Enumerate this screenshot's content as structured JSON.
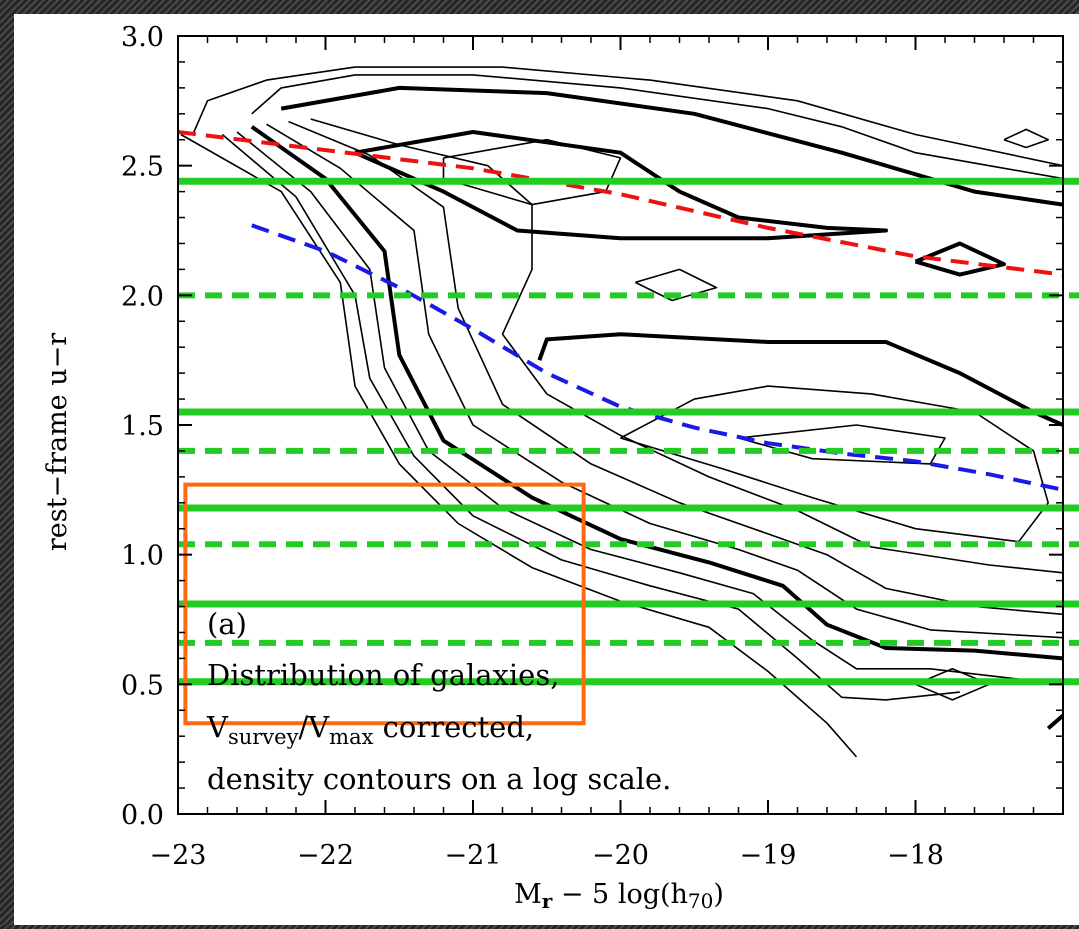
{
  "chart_data": {
    "type": "contour",
    "xlabel": {
      "main": "M",
      "sub": "r",
      "rest": "  −  5 log(h",
      "paren_sub": "70",
      "close": ")"
    },
    "ylabel": "rest−frame u−r",
    "xlim": [
      -23,
      -17.0
    ],
    "ylim": [
      0,
      3.0
    ],
    "x_ticks": [
      -23,
      -22,
      -21,
      -20,
      -19,
      -18
    ],
    "x_tick_labels": [
      "−23",
      "−22",
      "−21",
      "−20",
      "−19",
      "−18"
    ],
    "y_ticks": [
      0,
      0.5,
      1.0,
      1.5,
      2.0,
      2.5,
      3.0
    ],
    "y_tick_labels": [
      "0.0",
      "0.5",
      "1.0",
      "1.5",
      "2.0",
      "2.5",
      "3.0"
    ],
    "annotation": {
      "label": "(a)",
      "line1": "Distribution of galaxies,",
      "line2_pre": "V",
      "line2_sub1": "survey",
      "line2_mid": "/V",
      "line2_sub2": "max",
      "line2_post": " corrected,",
      "line3": "density contours on a log scale."
    },
    "reference_lines": {
      "solid_green_y": [
        2.44,
        1.55,
        1.18,
        0.81,
        0.51
      ],
      "dashed_green_y": [
        2.0,
        1.4,
        1.04,
        0.66
      ],
      "color": "#22cc22"
    },
    "dashed_fits": [
      {
        "color": "#ee1111",
        "x": [
          -23.0,
          -22.0,
          -21.0,
          -20.0,
          -19.0,
          -18.0,
          -17.0
        ],
        "y": [
          2.63,
          2.56,
          2.49,
          2.39,
          2.26,
          2.15,
          2.08
        ]
      },
      {
        "color": "#1a1ae6",
        "x": [
          -22.5,
          -22.0,
          -21.5,
          -21.0,
          -20.5,
          -20.0,
          -19.5,
          -19.0,
          -18.5,
          -18.0,
          -17.5,
          -17.0
        ],
        "y": [
          2.27,
          2.17,
          2.03,
          1.87,
          1.7,
          1.57,
          1.49,
          1.43,
          1.39,
          1.36,
          1.31,
          1.25
        ]
      }
    ],
    "highlight_box": {
      "x": [
        -22.95,
        -20.25
      ],
      "y": [
        0.35,
        1.27
      ],
      "color": "#ff6a10"
    },
    "contours": [
      {
        "weight": "thin",
        "points": [
          [
            -22.5,
            2.7
          ],
          [
            -22.3,
            2.8
          ],
          [
            -21.8,
            2.85
          ],
          [
            -21.0,
            2.85
          ],
          [
            -20.0,
            2.8
          ],
          [
            -19.0,
            2.72
          ],
          [
            -18.5,
            2.65
          ],
          [
            -18.0,
            2.55
          ],
          [
            -17.5,
            2.5
          ],
          [
            -17.0,
            2.45
          ]
        ]
      },
      {
        "weight": "thin",
        "points": [
          [
            -22.9,
            2.62
          ],
          [
            -22.8,
            2.75
          ],
          [
            -22.4,
            2.83
          ],
          [
            -21.8,
            2.88
          ],
          [
            -20.8,
            2.88
          ],
          [
            -19.8,
            2.83
          ],
          [
            -18.8,
            2.75
          ],
          [
            -18.0,
            2.62
          ],
          [
            -17.0,
            2.5
          ]
        ]
      },
      {
        "weight": "thin",
        "points": [
          [
            -22.98,
            2.62
          ],
          [
            -22.3,
            2.4
          ],
          [
            -21.9,
            2.05
          ],
          [
            -21.8,
            1.65
          ],
          [
            -21.5,
            1.35
          ],
          [
            -21.1,
            1.12
          ],
          [
            -20.6,
            0.95
          ],
          [
            -20.0,
            0.82
          ],
          [
            -19.4,
            0.72
          ],
          [
            -19.0,
            0.55
          ],
          [
            -18.6,
            0.35
          ],
          [
            -18.4,
            0.22
          ]
        ]
      },
      {
        "weight": "thin",
        "points": [
          [
            -22.7,
            2.62
          ],
          [
            -22.2,
            2.38
          ],
          [
            -21.8,
            2.0
          ],
          [
            -21.7,
            1.68
          ],
          [
            -21.4,
            1.38
          ],
          [
            -21.0,
            1.15
          ],
          [
            -20.4,
            0.98
          ],
          [
            -19.8,
            0.88
          ],
          [
            -19.2,
            0.79
          ],
          [
            -18.8,
            0.6
          ],
          [
            -18.5,
            0.45
          ],
          [
            -18.2,
            0.44
          ],
          [
            -17.7,
            0.47
          ]
        ]
      },
      {
        "weight": "thin",
        "points": [
          [
            -22.6,
            2.63
          ],
          [
            -22.1,
            2.4
          ],
          [
            -21.7,
            2.1
          ],
          [
            -21.6,
            1.72
          ],
          [
            -21.3,
            1.4
          ],
          [
            -20.8,
            1.18
          ],
          [
            -20.2,
            1.02
          ],
          [
            -19.6,
            0.93
          ],
          [
            -19.1,
            0.85
          ],
          [
            -18.7,
            0.67
          ],
          [
            -18.4,
            0.56
          ],
          [
            -17.9,
            0.56
          ],
          [
            -17.0,
            0.5
          ]
        ]
      },
      {
        "weight": "thick",
        "points": [
          [
            -22.5,
            2.65
          ],
          [
            -22.0,
            2.45
          ],
          [
            -21.6,
            2.17
          ],
          [
            -21.5,
            1.77
          ],
          [
            -21.2,
            1.44
          ],
          [
            -20.6,
            1.22
          ],
          [
            -20.0,
            1.06
          ],
          [
            -19.4,
            0.97
          ],
          [
            -18.9,
            0.88
          ],
          [
            -18.6,
            0.73
          ],
          [
            -18.2,
            0.64
          ],
          [
            -17.6,
            0.63
          ],
          [
            -17.0,
            0.6
          ]
        ]
      },
      {
        "weight": "thin",
        "points": [
          [
            -22.4,
            2.66
          ],
          [
            -21.9,
            2.49
          ],
          [
            -21.4,
            2.25
          ],
          [
            -21.3,
            1.85
          ],
          [
            -21.0,
            1.5
          ],
          [
            -20.4,
            1.28
          ],
          [
            -19.8,
            1.12
          ],
          [
            -19.2,
            1.02
          ],
          [
            -18.8,
            0.94
          ],
          [
            -18.4,
            0.79
          ],
          [
            -17.9,
            0.71
          ],
          [
            -17.0,
            0.68
          ]
        ]
      },
      {
        "weight": "thin",
        "points": [
          [
            -22.25,
            2.67
          ],
          [
            -21.7,
            2.54
          ],
          [
            -21.2,
            2.34
          ],
          [
            -21.1,
            1.95
          ],
          [
            -20.8,
            1.58
          ],
          [
            -20.2,
            1.35
          ],
          [
            -19.6,
            1.2
          ],
          [
            -19.0,
            1.08
          ],
          [
            -18.6,
            1.0
          ],
          [
            -18.2,
            0.87
          ],
          [
            -17.6,
            0.8
          ],
          [
            -17.0,
            0.77
          ]
        ]
      },
      {
        "weight": "thin",
        "points": [
          [
            -22.1,
            2.68
          ],
          [
            -21.5,
            2.58
          ],
          [
            -20.9,
            2.5
          ],
          [
            -20.6,
            2.35
          ],
          [
            -20.6,
            2.1
          ],
          [
            -20.8,
            1.85
          ],
          [
            -20.5,
            1.62
          ],
          [
            -20.0,
            1.46
          ],
          [
            -19.4,
            1.3
          ],
          [
            -18.8,
            1.17
          ],
          [
            -18.3,
            1.03
          ],
          [
            -17.5,
            0.96
          ],
          [
            -17.0,
            0.93
          ]
        ]
      },
      {
        "weight": "thick",
        "points": [
          [
            -22.3,
            2.72
          ],
          [
            -21.5,
            2.8
          ],
          [
            -20.5,
            2.78
          ],
          [
            -19.5,
            2.7
          ],
          [
            -18.5,
            2.55
          ],
          [
            -17.6,
            2.4
          ],
          [
            -17.0,
            2.35
          ]
        ]
      },
      {
        "weight": "thick",
        "points": [
          [
            -21.8,
            2.55
          ],
          [
            -21.0,
            2.63
          ],
          [
            -20.0,
            2.55
          ],
          [
            -19.6,
            2.4
          ],
          [
            -19.2,
            2.3
          ],
          [
            -18.6,
            2.26
          ],
          [
            -18.2,
            2.25
          ],
          [
            -19.0,
            2.22
          ],
          [
            -20.0,
            2.22
          ],
          [
            -20.7,
            2.25
          ],
          [
            -21.2,
            2.4
          ],
          [
            -21.8,
            2.55
          ]
        ]
      },
      {
        "weight": "thin",
        "points": [
          [
            -21.2,
            2.53
          ],
          [
            -20.5,
            2.6
          ],
          [
            -20.0,
            2.53
          ],
          [
            -20.1,
            2.4
          ],
          [
            -20.6,
            2.35
          ],
          [
            -21.2,
            2.45
          ],
          [
            -21.2,
            2.53
          ]
        ]
      },
      {
        "weight": "thick",
        "points": [
          [
            -20.55,
            1.75
          ],
          [
            -20.5,
            1.83
          ],
          [
            -20.0,
            1.85
          ],
          [
            -19.0,
            1.82
          ],
          [
            -18.2,
            1.82
          ],
          [
            -17.7,
            1.7
          ],
          [
            -17.2,
            1.55
          ],
          [
            -17.0,
            1.5
          ]
        ]
      },
      {
        "weight": "thin",
        "points": [
          [
            -20.0,
            1.45
          ],
          [
            -19.5,
            1.6
          ],
          [
            -19.0,
            1.65
          ],
          [
            -18.3,
            1.62
          ],
          [
            -17.6,
            1.55
          ],
          [
            -17.2,
            1.4
          ],
          [
            -17.1,
            1.2
          ],
          [
            -17.3,
            1.05
          ],
          [
            -18.0,
            1.1
          ],
          [
            -18.7,
            1.22
          ],
          [
            -19.3,
            1.33
          ],
          [
            -20.0,
            1.45
          ]
        ]
      },
      {
        "weight": "thin",
        "points": [
          [
            -19.2,
            1.45
          ],
          [
            -18.4,
            1.5
          ],
          [
            -17.8,
            1.45
          ],
          [
            -17.9,
            1.35
          ],
          [
            -18.7,
            1.37
          ],
          [
            -19.2,
            1.45
          ]
        ]
      },
      {
        "weight": "thin",
        "points": [
          [
            -19.9,
            2.05
          ],
          [
            -19.6,
            2.1
          ],
          [
            -19.35,
            2.03
          ],
          [
            -19.65,
            1.98
          ],
          [
            -19.9,
            2.05
          ]
        ]
      },
      {
        "weight": "thick",
        "points": [
          [
            -18.0,
            2.13
          ],
          [
            -17.7,
            2.2
          ],
          [
            -17.4,
            2.12
          ],
          [
            -17.7,
            2.08
          ],
          [
            -18.0,
            2.13
          ]
        ]
      },
      {
        "weight": "thin",
        "points": [
          [
            -17.4,
            2.6
          ],
          [
            -17.25,
            2.64
          ],
          [
            -17.1,
            2.6
          ],
          [
            -17.25,
            2.57
          ],
          [
            -17.4,
            2.6
          ]
        ]
      },
      {
        "weight": "thin",
        "points": [
          [
            -18.0,
            0.5
          ],
          [
            -17.75,
            0.56
          ],
          [
            -17.5,
            0.5
          ],
          [
            -17.75,
            0.44
          ],
          [
            -18.0,
            0.5
          ]
        ]
      },
      {
        "weight": "thick",
        "points": [
          [
            -17.1,
            0.33
          ],
          [
            -17.0,
            0.38
          ]
        ]
      }
    ]
  }
}
